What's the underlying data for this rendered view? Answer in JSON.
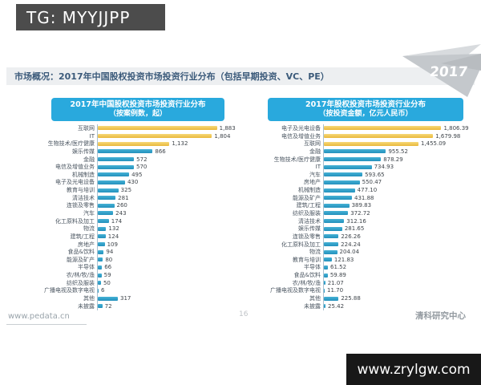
{
  "watermark_top": {
    "text": "TG: MYYJJPP"
  },
  "watermark_bottom": {
    "text": "www.zrylgw.com"
  },
  "slide": {
    "header": "市场概况：2017年中国股权投资市场投资行业分布（包括早期投资、VC、PE）",
    "year_badge": "2017",
    "footer_left": "www.pedata.cn",
    "page_number": "16",
    "footer_right": "清科研究中心"
  },
  "colors": {
    "title_band": "#29a9dd",
    "bar_highlight_top": "#f6d878",
    "bar_highlight_bottom": "#e9b93c",
    "bar_normal_top": "#45b1d5",
    "bar_normal_bottom": "#2391bd",
    "header_bar_bg": "#edeff1",
    "header_text": "#3b5a7a",
    "arrow_light": "#d8dbde",
    "arrow_mid": "#c4c8cc"
  },
  "chart_data": [
    {
      "type": "bar",
      "orientation": "horizontal",
      "title": "2017年中国股权投资市场投资行业分布",
      "subtitle": "（按案例数，起）",
      "highlight_top": 3,
      "xlim": [
        0,
        1900
      ],
      "categories": [
        "互联网",
        "IT",
        "生物技术/医疗健康",
        "娱乐传媒",
        "金融",
        "电信及增值业务",
        "机械制造",
        "电子及光电设备",
        "教育与培训",
        "清洁技术",
        "连锁及零售",
        "汽车",
        "化工原料及加工",
        "物流",
        "建筑/工程",
        "房地产",
        "食品&饮料",
        "能源及矿产",
        "半导体",
        "农/林/牧/渔",
        "纺织及服装",
        "广播电视及数字电视",
        "其他",
        "未披露"
      ],
      "values": [
        1883,
        1804,
        1132,
        866,
        572,
        570,
        495,
        430,
        325,
        281,
        260,
        243,
        174,
        132,
        124,
        109,
        94,
        80,
        66,
        59,
        50,
        6,
        317,
        72
      ],
      "value_labels": [
        "1,883",
        "1,804",
        "1,132",
        "866",
        "572",
        "570",
        "495",
        "430",
        "325",
        "281",
        "260",
        "243",
        "174",
        "132",
        "124",
        "109",
        "94",
        "80",
        "66",
        "59",
        "50",
        "6",
        "317",
        "72"
      ]
    },
    {
      "type": "bar",
      "orientation": "horizontal",
      "title": "2017年股权投资市场投资行业分布",
      "subtitle": "（按投资金额，亿元人民币）",
      "highlight_top": 3,
      "xlim": [
        0,
        1850
      ],
      "categories": [
        "电子及光电设备",
        "电信及增值业务",
        "互联网",
        "金融",
        "生物技术/医疗健康",
        "IT",
        "汽车",
        "房地产",
        "机械制造",
        "能源及矿产",
        "建筑/工程",
        "纺织及服装",
        "清洁技术",
        "娱乐传媒",
        "连锁及零售",
        "化工原料及加工",
        "物流",
        "教育与培训",
        "半导体",
        "食品&饮料",
        "农/林/牧/渔",
        "广播电视及数字电视",
        "其他",
        "未披露"
      ],
      "values": [
        1806.39,
        1679.98,
        1455.09,
        955.52,
        878.29,
        734.93,
        593.65,
        550.47,
        477.1,
        431.88,
        389.83,
        372.72,
        312.16,
        281.65,
        226.26,
        224.24,
        204.04,
        121.83,
        61.52,
        59.89,
        21.07,
        11.7,
        225.88,
        25.42
      ],
      "value_labels": [
        "1,806.39",
        "1,679.98",
        "1,455.09",
        "955.52",
        "878.29",
        "734.93",
        "593.65",
        "550.47",
        "477.10",
        "431.88",
        "389.83",
        "372.72",
        "312.16",
        "281.65",
        "226.26",
        "224.24",
        "204.04",
        "121.83",
        "61.52",
        "59.89",
        "21.07",
        "11.70",
        "225.88",
        "25.42"
      ]
    }
  ]
}
